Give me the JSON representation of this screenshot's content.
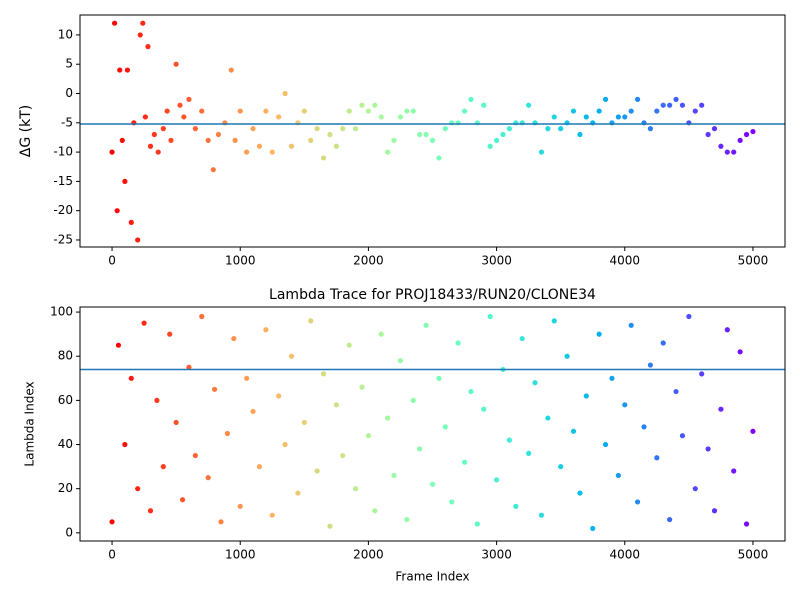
{
  "chart_data": [
    {
      "type": "scatter",
      "ylabel": "ΔG (kT)",
      "colormap": "rainbow_r",
      "x": [
        0,
        20,
        40,
        60,
        80,
        100,
        120,
        150,
        170,
        200,
        220,
        240,
        260,
        280,
        300,
        330,
        360,
        400,
        430,
        460,
        500,
        530,
        560,
        600,
        650,
        700,
        750,
        790,
        830,
        880,
        930,
        960,
        1000,
        1050,
        1100,
        1150,
        1200,
        1250,
        1300,
        1350,
        1400,
        1450,
        1500,
        1550,
        1600,
        1650,
        1700,
        1750,
        1800,
        1850,
        1900,
        1950,
        2000,
        2050,
        2100,
        2150,
        2200,
        2250,
        2300,
        2350,
        2400,
        2450,
        2500,
        2550,
        2600,
        2650,
        2700,
        2750,
        2800,
        2850,
        2900,
        2950,
        3000,
        3050,
        3100,
        3150,
        3200,
        3250,
        3300,
        3350,
        3400,
        3450,
        3500,
        3550,
        3600,
        3650,
        3700,
        3750,
        3800,
        3850,
        3900,
        3950,
        4000,
        4050,
        4100,
        4150,
        4200,
        4250,
        4300,
        4350,
        4400,
        4450,
        4500,
        4550,
        4600,
        4650,
        4700,
        4750,
        4800,
        4850,
        4900,
        4950,
        5000
      ],
      "values": [
        -10,
        12,
        -20,
        4,
        -8,
        -15,
        4,
        -22,
        -5,
        -25,
        10,
        12,
        -4,
        8,
        -9,
        -7,
        -10,
        -6,
        -3,
        -8,
        5,
        -2,
        -4,
        -1,
        -6,
        -3,
        -8,
        -13,
        -7,
        -5,
        4,
        -8,
        -3,
        -10,
        -6,
        -9,
        -3,
        -10,
        -4,
        0,
        -9,
        -5,
        -3,
        -8,
        -6,
        -11,
        -7,
        -9,
        -6,
        -3,
        -6,
        -2,
        -3,
        -2,
        -4,
        -10,
        -8,
        -4,
        -3,
        -3,
        -7,
        -7,
        -8,
        -11,
        -6,
        -5,
        -5,
        -3,
        -1,
        -5,
        -2,
        -9,
        -8,
        -7,
        -6,
        -5,
        -5,
        -2,
        -5,
        -10,
        -6,
        -4,
        -6,
        -5,
        -3,
        -7,
        -4,
        -5,
        -3,
        -1,
        -5,
        -4,
        -4,
        -3,
        -1,
        -5,
        -6,
        -3,
        -2,
        -2,
        -1,
        -2,
        -5,
        -3,
        -2,
        -7,
        -6,
        -9,
        -10,
        -10,
        -8,
        -7,
        -6.5
      ],
      "hline": -5.2,
      "hline_color": "#1f77b4",
      "xlim": [
        -250,
        5250
      ],
      "ylim": [
        -26.2,
        13.4
      ],
      "xticks": [
        0,
        1000,
        2000,
        3000,
        4000,
        5000
      ],
      "yticks": [
        -25,
        -20,
        -15,
        -10,
        -5,
        0,
        5,
        10
      ]
    },
    {
      "type": "scatter",
      "title": "Lambda Trace for PROJ18433/RUN20/CLONE34",
      "xlabel": "Frame Index",
      "ylabel": "Lambda Index",
      "colormap": "rainbow_r",
      "x": [
        0,
        50,
        100,
        150,
        200,
        250,
        300,
        350,
        400,
        450,
        500,
        550,
        600,
        650,
        700,
        750,
        800,
        850,
        900,
        950,
        1000,
        1050,
        1100,
        1150,
        1200,
        1250,
        1300,
        1350,
        1400,
        1450,
        1500,
        1550,
        1600,
        1650,
        1700,
        1750,
        1800,
        1850,
        1900,
        1950,
        2000,
        2050,
        2100,
        2150,
        2200,
        2250,
        2300,
        2350,
        2400,
        2450,
        2500,
        2550,
        2600,
        2650,
        2700,
        2750,
        2800,
        2850,
        2900,
        2950,
        3000,
        3050,
        3100,
        3150,
        3200,
        3250,
        3300,
        3350,
        3400,
        3450,
        3500,
        3550,
        3600,
        3650,
        3700,
        3750,
        3800,
        3850,
        3900,
        3950,
        4000,
        4050,
        4100,
        4150,
        4200,
        4250,
        4300,
        4350,
        4400,
        4450,
        4500,
        4550,
        4600,
        4650,
        4700,
        4750,
        4800,
        4850,
        4900,
        4950,
        5000
      ],
      "values": [
        5,
        85,
        40,
        70,
        20,
        95,
        10,
        60,
        30,
        90,
        50,
        15,
        75,
        35,
        98,
        25,
        65,
        5,
        45,
        88,
        12,
        70,
        55,
        30,
        92,
        8,
        62,
        40,
        80,
        18,
        50,
        96,
        28,
        72,
        3,
        58,
        35,
        85,
        20,
        66,
        44,
        10,
        90,
        52,
        26,
        78,
        6,
        60,
        38,
        94,
        22,
        70,
        48,
        14,
        86,
        32,
        64,
        4,
        56,
        98,
        24,
        74,
        42,
        12,
        88,
        36,
        68,
        8,
        52,
        96,
        30,
        80,
        46,
        18,
        62,
        2,
        90,
        40,
        70,
        26,
        58,
        94,
        14,
        48,
        76,
        34,
        86,
        6,
        64,
        44,
        98,
        20,
        72,
        38,
        10,
        56,
        92,
        28,
        82,
        4,
        46
      ],
      "hline": 74,
      "hline_color": "#1f77b4",
      "xlim": [
        -250,
        5250
      ],
      "ylim": [
        -3.7,
        102.3
      ],
      "xticks": [
        0,
        1000,
        2000,
        3000,
        4000,
        5000
      ],
      "yticks": [
        0,
        20,
        40,
        60,
        80,
        100
      ]
    }
  ]
}
